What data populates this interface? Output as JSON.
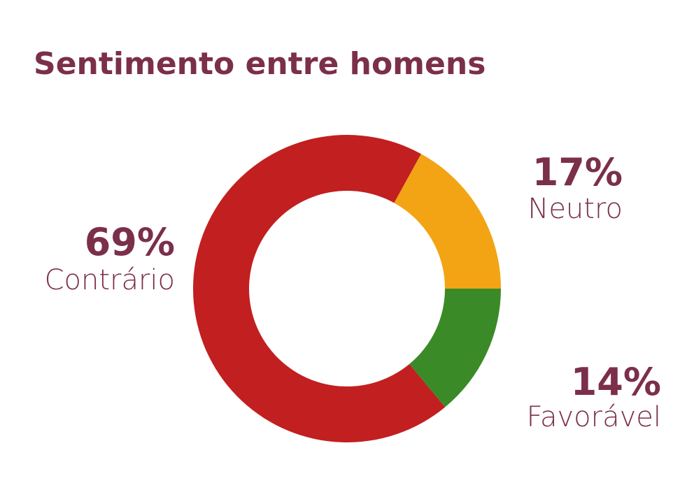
{
  "chart_data": {
    "type": "pie",
    "title": "Sentimento entre homens",
    "categories": [
      "Contrário",
      "Neutro",
      "Favorável"
    ],
    "values": [
      69,
      17,
      14
    ],
    "value_labels": [
      "69%",
      "17%",
      "14%"
    ],
    "colors": [
      "#c21f20",
      "#f3a414",
      "#3a8a27"
    ]
  }
}
